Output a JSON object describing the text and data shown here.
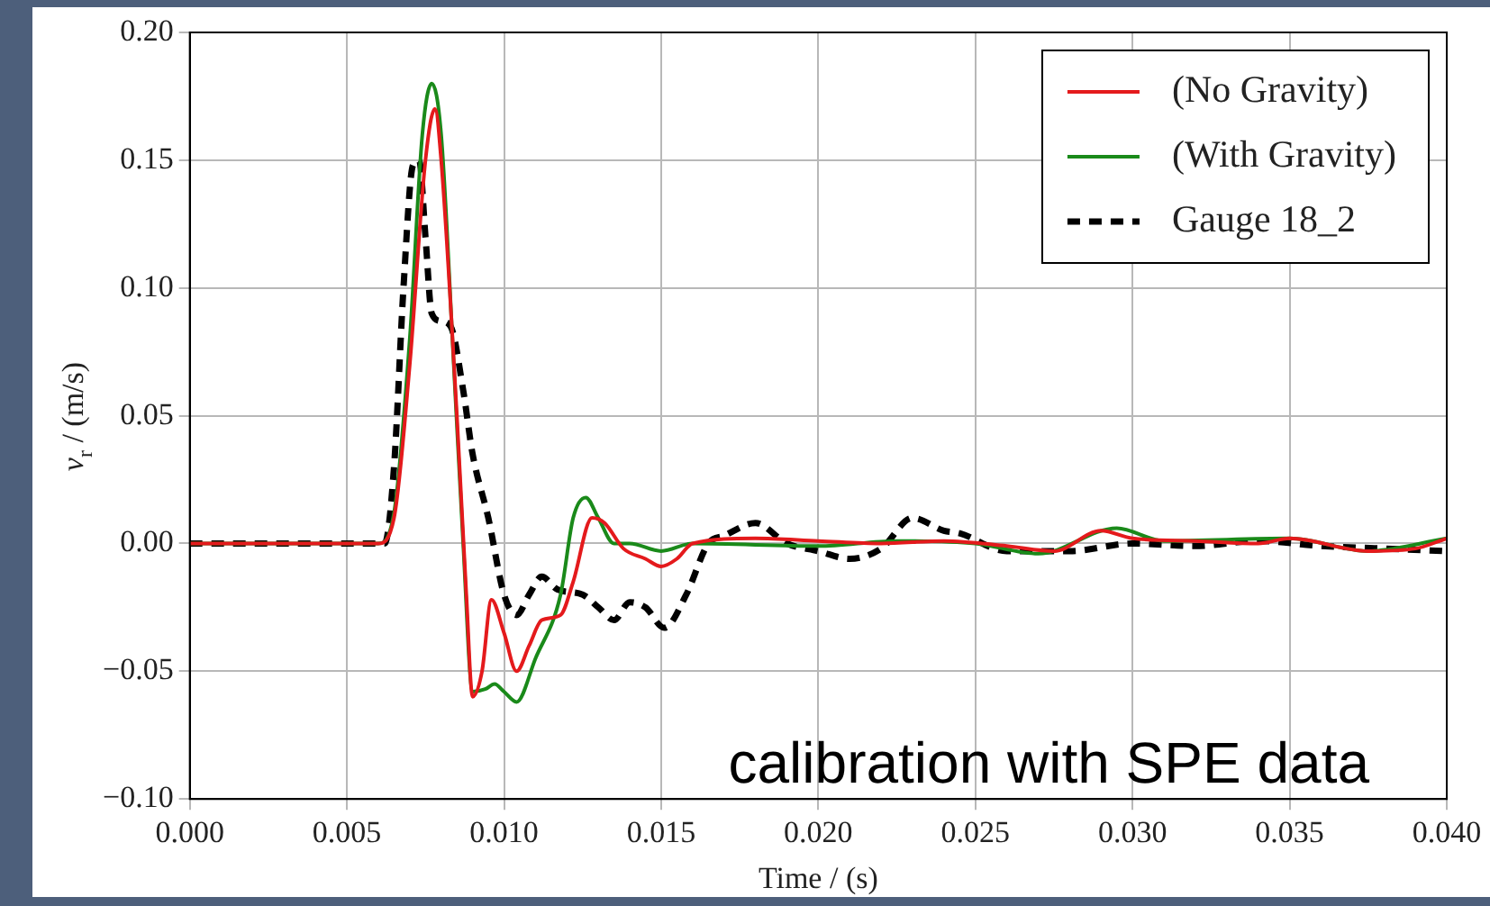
{
  "chart_data": {
    "type": "line",
    "xlabel": "Time / (s)",
    "ylabel": "v$_{r}$ / (m/s)",
    "annotations": [
      "calibration with SPE data"
    ],
    "xlim": [
      0,
      0.04
    ],
    "ylim": [
      -0.1,
      0.2
    ],
    "xticks": [
      {
        "value": 0,
        "label": "0.000"
      },
      {
        "value": 0.005,
        "label": "0.005"
      },
      {
        "value": 0.01,
        "label": "0.010"
      },
      {
        "value": 0.015,
        "label": "0.015"
      },
      {
        "value": 0.02,
        "label": "0.020"
      },
      {
        "value": 0.025,
        "label": "0.025"
      },
      {
        "value": 0.03,
        "label": "0.030"
      },
      {
        "value": 0.035,
        "label": "0.035"
      },
      {
        "value": 0.04,
        "label": "0.040"
      }
    ],
    "yticks": [
      {
        "value": -0.1,
        "label": "−0.10"
      },
      {
        "value": -0.05,
        "label": "−0.05"
      },
      {
        "value": 0,
        "label": "0.00"
      },
      {
        "value": 0.05,
        "label": "0.05"
      },
      {
        "value": 0.1,
        "label": "0.10"
      },
      {
        "value": 0.15,
        "label": "0.15"
      },
      {
        "value": 0.2,
        "label": "0.20"
      }
    ],
    "grid": true,
    "legend": "top right",
    "marker": "none",
    "series": [
      {
        "name": "(No Gravity)",
        "color": "#e41a1c",
        "line_style": "solid",
        "x": [
          0,
          0.006,
          0.0065,
          0.007,
          0.0075,
          0.0078,
          0.008,
          0.0085,
          0.0088,
          0.009,
          0.0093,
          0.0096,
          0.01,
          0.0104,
          0.0108,
          0.0112,
          0.0118,
          0.0122,
          0.0128,
          0.0132,
          0.0138,
          0.0145,
          0.015,
          0.0155,
          0.016,
          0.018,
          0.02,
          0.022,
          0.024,
          0.026,
          0.0275,
          0.029,
          0.03,
          0.032,
          0.034,
          0.035,
          0.0375,
          0.039,
          0.04
        ],
        "values": [
          0,
          0,
          0.01,
          0.07,
          0.15,
          0.17,
          0.15,
          0.05,
          -0.02,
          -0.06,
          -0.05,
          -0.022,
          -0.035,
          -0.05,
          -0.04,
          -0.03,
          -0.028,
          -0.015,
          0.01,
          0.008,
          -0.002,
          -0.006,
          -0.009,
          -0.006,
          0,
          0.002,
          0.001,
          0,
          0.001,
          -0.001,
          -0.003,
          0.005,
          0.002,
          0.001,
          0,
          0.002,
          -0.003,
          -0.002,
          0.002
        ]
      },
      {
        "name": "(With Gravity)",
        "color": "#1a8a1a",
        "line_style": "solid",
        "x": [
          0,
          0.006,
          0.0065,
          0.007,
          0.0074,
          0.0077,
          0.008,
          0.0084,
          0.0087,
          0.009,
          0.0094,
          0.0097,
          0.01,
          0.0104,
          0.011,
          0.0118,
          0.0122,
          0.0126,
          0.013,
          0.0135,
          0.014,
          0.015,
          0.016,
          0.02,
          0.0225,
          0.025,
          0.027,
          0.0295,
          0.031,
          0.035,
          0.0375,
          0.04
        ],
        "values": [
          0,
          0,
          0.012,
          0.08,
          0.16,
          0.18,
          0.16,
          0.07,
          0,
          -0.058,
          -0.057,
          -0.055,
          -0.058,
          -0.062,
          -0.045,
          -0.02,
          0.01,
          0.018,
          0.01,
          0,
          0,
          -0.003,
          0,
          -0.001,
          0.001,
          0,
          -0.004,
          0.006,
          0.001,
          0.002,
          -0.003,
          0.002
        ]
      },
      {
        "name": "Gauge 18_2",
        "color": "#000000",
        "line_style": "dashed",
        "x": [
          0,
          0.0062,
          0.0065,
          0.0068,
          0.0071,
          0.0073,
          0.0075,
          0.0077,
          0.008,
          0.0083,
          0.0087,
          0.009,
          0.0095,
          0.01,
          0.0104,
          0.0108,
          0.0112,
          0.0117,
          0.0125,
          0.013,
          0.0135,
          0.014,
          0.0145,
          0.0151,
          0.0158,
          0.0165,
          0.017,
          0.018,
          0.019,
          0.02,
          0.021,
          0.022,
          0.023,
          0.024,
          0.0245,
          0.026,
          0.028,
          0.03,
          0.032,
          0.034,
          0.036,
          0.038,
          0.04
        ],
        "values": [
          0,
          0,
          0.03,
          0.1,
          0.148,
          0.15,
          0.12,
          0.09,
          0.087,
          0.085,
          0.06,
          0.035,
          0.01,
          -0.02,
          -0.028,
          -0.02,
          -0.013,
          -0.018,
          -0.02,
          -0.025,
          -0.03,
          -0.023,
          -0.025,
          -0.033,
          -0.02,
          0,
          0.003,
          0.008,
          0,
          -0.003,
          -0.006,
          -0.002,
          0.01,
          0.005,
          0.004,
          -0.003,
          -0.003,
          0,
          -0.001,
          0.001,
          -0.001,
          -0.002,
          -0.003
        ]
      }
    ]
  }
}
